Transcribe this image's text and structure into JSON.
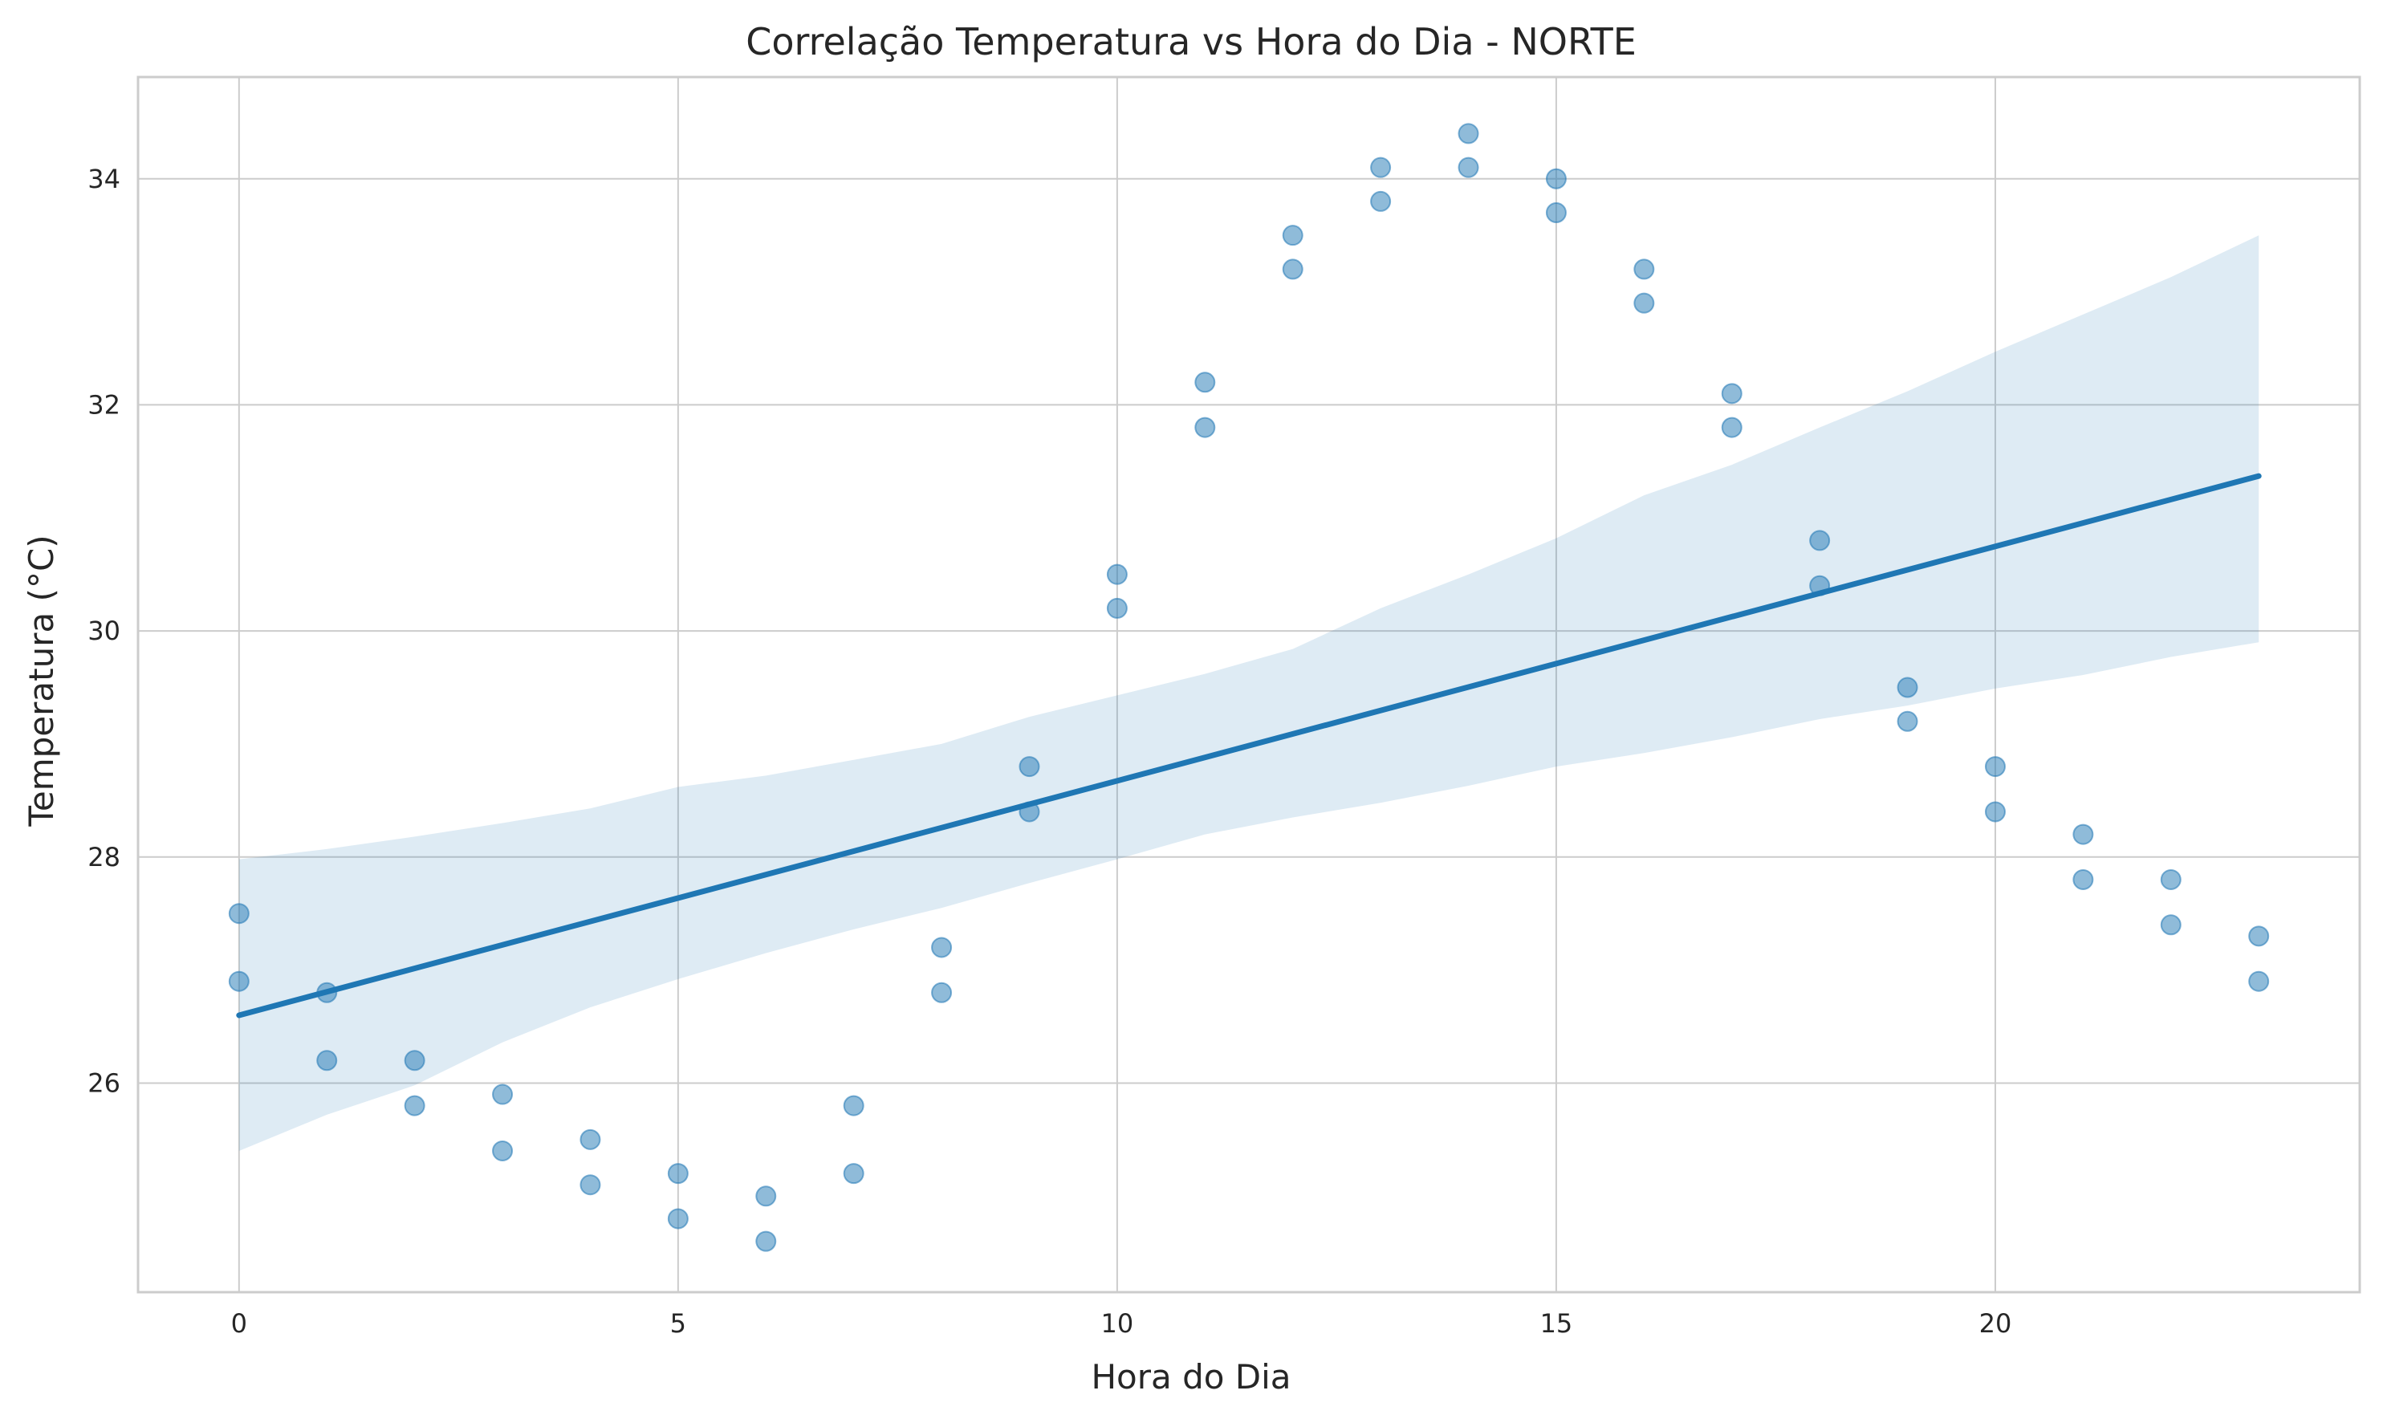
{
  "colors": {
    "background": "#ffffff",
    "grid": "#cccccc",
    "spine": "#cccccc",
    "points": "#1f77b4",
    "regression_line": "#1f77b4",
    "confidence_band": "#1f77b4"
  },
  "chart_data": {
    "type": "scatter",
    "title": "Correlação Temperatura vs Hora do Dia - NORTE",
    "xlabel": "Hora do Dia",
    "ylabel": "Temperatura (°C)",
    "xlim": [
      -1.15,
      24.15
    ],
    "ylim": [
      24.15,
      34.9
    ],
    "xticks": [
      0,
      5,
      10,
      15,
      20
    ],
    "yticks": [
      26,
      28,
      30,
      32,
      34
    ],
    "grid": true,
    "legend": "none",
    "series": [
      {
        "kind": "points",
        "x": [
          0,
          0,
          1,
          1,
          2,
          2,
          3,
          3,
          4,
          4,
          5,
          5,
          6,
          6,
          7,
          7,
          8,
          8,
          9,
          9,
          10,
          10,
          11,
          11,
          12,
          12,
          13,
          13,
          14,
          14,
          15,
          15,
          16,
          16,
          17,
          17,
          18,
          18,
          19,
          19,
          20,
          20,
          21,
          21,
          22,
          22,
          23,
          23
        ],
        "y": [
          27.5,
          26.9,
          26.8,
          26.2,
          26.2,
          25.8,
          25.9,
          25.4,
          25.5,
          25.1,
          25.2,
          24.8,
          25.0,
          24.6,
          25.8,
          25.2,
          27.2,
          26.8,
          28.8,
          28.4,
          30.5,
          30.2,
          32.2,
          31.8,
          33.5,
          33.2,
          34.1,
          33.8,
          34.4,
          34.1,
          34.0,
          33.7,
          33.2,
          32.9,
          32.1,
          31.8,
          30.8,
          30.4,
          29.5,
          29.2,
          28.8,
          28.4,
          28.2,
          27.8,
          27.8,
          27.4,
          27.3,
          26.9
        ]
      },
      {
        "kind": "regression",
        "x": [
          0,
          23
        ],
        "y": [
          26.6,
          31.37
        ]
      },
      {
        "kind": "confidence_band",
        "x": [
          0,
          1,
          2,
          3,
          4,
          5,
          6,
          7,
          8,
          9,
          10,
          11,
          12,
          13,
          14,
          15,
          16,
          17,
          18,
          19,
          20,
          21,
          22,
          23
        ],
        "upper": [
          27.98,
          28.07,
          28.18,
          28.3,
          28.43,
          28.62,
          28.72,
          28.86,
          29.0,
          29.24,
          29.43,
          29.62,
          29.84,
          30.2,
          30.5,
          30.82,
          31.2,
          31.47,
          31.8,
          32.12,
          32.47,
          32.8,
          33.13,
          33.5
        ],
        "lower": [
          25.4,
          25.72,
          25.98,
          26.36,
          26.67,
          26.92,
          27.15,
          27.36,
          27.55,
          27.77,
          27.98,
          28.2,
          28.35,
          28.48,
          28.63,
          28.8,
          28.92,
          29.06,
          29.22,
          29.34,
          29.49,
          29.61,
          29.77,
          29.9
        ]
      }
    ]
  }
}
